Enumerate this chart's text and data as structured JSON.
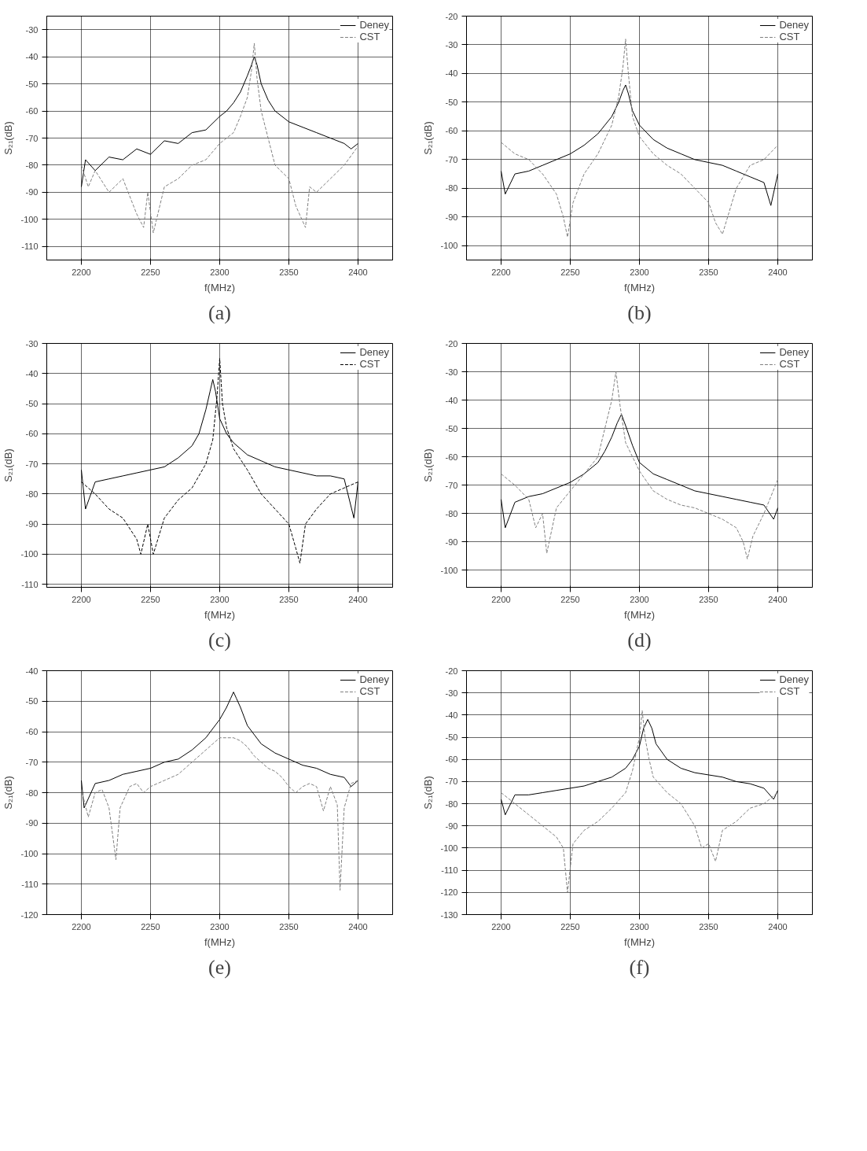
{
  "chart_data": [
    {
      "type": "line",
      "xlabel": "f(MHz)",
      "ylabel": "S₂₁(dB)",
      "annotations": [
        "(a)"
      ],
      "xlim": [
        2175,
        2425
      ],
      "ylim": [
        -115,
        -25
      ],
      "xticks": [
        2200,
        2250,
        2300,
        2350,
        2400
      ],
      "yticks": [
        -110,
        -100,
        -90,
        -80,
        -70,
        -60,
        -50,
        -40,
        -30
      ],
      "grid": true,
      "legend": "top right",
      "series": [
        {
          "name": "Deney",
          "color": "#000000",
          "line_style": "solid",
          "x": [
            2200,
            2203,
            2210,
            2220,
            2230,
            2240,
            2250,
            2260,
            2270,
            2280,
            2290,
            2300,
            2305,
            2310,
            2315,
            2320,
            2323,
            2325,
            2327,
            2330,
            2335,
            2340,
            2350,
            2360,
            2370,
            2380,
            2390,
            2395,
            2400
          ],
          "values": [
            -88,
            -78,
            -82,
            -77,
            -78,
            -74,
            -76,
            -71,
            -72,
            -68,
            -67,
            -62,
            -60,
            -57,
            -53,
            -47,
            -43,
            -40,
            -43,
            -50,
            -56,
            -60,
            -64,
            -66,
            -68,
            -70,
            -72,
            -74,
            -72
          ]
        },
        {
          "name": "CST",
          "color": "#808080",
          "line_style": "dashed",
          "x": [
            2200,
            2205,
            2210,
            2220,
            2230,
            2240,
            2245,
            2248,
            2252,
            2260,
            2270,
            2280,
            2290,
            2300,
            2310,
            2315,
            2320,
            2323,
            2325,
            2327,
            2330,
            2335,
            2340,
            2350,
            2355,
            2362,
            2365,
            2370,
            2380,
            2390,
            2400
          ],
          "values": [
            -80,
            -88,
            -82,
            -90,
            -85,
            -98,
            -103,
            -90,
            -105,
            -88,
            -85,
            -80,
            -78,
            -72,
            -68,
            -62,
            -55,
            -45,
            -35,
            -48,
            -60,
            -70,
            -80,
            -85,
            -95,
            -103,
            -88,
            -90,
            -85,
            -80,
            -73
          ]
        }
      ]
    },
    {
      "type": "line",
      "xlabel": "f(MHz)",
      "ylabel": "S₂₁(dB)",
      "annotations": [
        "(b)"
      ],
      "xlim": [
        2175,
        2425
      ],
      "ylim": [
        -105,
        -20
      ],
      "xticks": [
        2200,
        2250,
        2300,
        2350,
        2400
      ],
      "yticks": [
        -100,
        -90,
        -80,
        -70,
        -60,
        -50,
        -40,
        -30,
        -20
      ],
      "grid": true,
      "legend": "top right",
      "series": [
        {
          "name": "Deney",
          "color": "#000000",
          "line_style": "solid",
          "x": [
            2200,
            2203,
            2210,
            2220,
            2230,
            2240,
            2250,
            2260,
            2270,
            2275,
            2280,
            2285,
            2288,
            2290,
            2292,
            2295,
            2300,
            2310,
            2320,
            2330,
            2340,
            2350,
            2360,
            2370,
            2380,
            2390,
            2395,
            2400
          ],
          "values": [
            -74,
            -82,
            -75,
            -74,
            -72,
            -70,
            -68,
            -65,
            -61,
            -58,
            -55,
            -50,
            -46,
            -44,
            -47,
            -53,
            -58,
            -63,
            -66,
            -68,
            -70,
            -71,
            -72,
            -74,
            -76,
            -78,
            -86,
            -75
          ]
        },
        {
          "name": "CST",
          "color": "#808080",
          "line_style": "dashed",
          "x": [
            2200,
            2210,
            2220,
            2230,
            2240,
            2245,
            2248,
            2252,
            2260,
            2270,
            2280,
            2285,
            2288,
            2290,
            2292,
            2295,
            2300,
            2310,
            2320,
            2330,
            2340,
            2350,
            2355,
            2360,
            2365,
            2370,
            2380,
            2390,
            2400
          ],
          "values": [
            -64,
            -68,
            -70,
            -75,
            -82,
            -90,
            -97,
            -85,
            -75,
            -68,
            -58,
            -48,
            -38,
            -28,
            -40,
            -55,
            -62,
            -68,
            -72,
            -75,
            -80,
            -85,
            -92,
            -96,
            -88,
            -80,
            -72,
            -70,
            -65
          ]
        }
      ]
    },
    {
      "type": "line",
      "xlabel": "f(MHz)",
      "ylabel": "S₂₁(dB)",
      "annotations": [
        "(c)"
      ],
      "xlim": [
        2175,
        2425
      ],
      "ylim": [
        -111,
        -30
      ],
      "xticks": [
        2200,
        2250,
        2300,
        2350,
        2400
      ],
      "yticks": [
        -110,
        -100,
        -90,
        -80,
        -70,
        -60,
        -50,
        -40,
        -30
      ],
      "grid": true,
      "legend": "top right",
      "series": [
        {
          "name": "Deney",
          "color": "#000000",
          "line_style": "solid",
          "x": [
            2200,
            2203,
            2210,
            2220,
            2230,
            2240,
            2250,
            2260,
            2270,
            2280,
            2285,
            2290,
            2293,
            2295,
            2297,
            2300,
            2305,
            2310,
            2320,
            2330,
            2340,
            2350,
            2360,
            2370,
            2380,
            2390,
            2397,
            2400
          ],
          "values": [
            -72,
            -85,
            -76,
            -75,
            -74,
            -73,
            -72,
            -71,
            -68,
            -64,
            -60,
            -52,
            -46,
            -42,
            -46,
            -55,
            -60,
            -63,
            -67,
            -69,
            -71,
            -72,
            -73,
            -74,
            -74,
            -75,
            -88,
            -76
          ]
        },
        {
          "name": "CST",
          "color": "#000000",
          "line_style": "dashed",
          "x": [
            2200,
            2210,
            2220,
            2230,
            2240,
            2243,
            2248,
            2252,
            2260,
            2270,
            2280,
            2290,
            2295,
            2298,
            2300,
            2302,
            2305,
            2310,
            2320,
            2330,
            2340,
            2350,
            2355,
            2358,
            2362,
            2370,
            2380,
            2390,
            2400
          ],
          "values": [
            -76,
            -80,
            -85,
            -88,
            -95,
            -100,
            -90,
            -100,
            -88,
            -82,
            -78,
            -70,
            -62,
            -48,
            -35,
            -50,
            -58,
            -65,
            -72,
            -80,
            -85,
            -90,
            -98,
            -103,
            -90,
            -85,
            -80,
            -78,
            -76
          ]
        }
      ]
    },
    {
      "type": "line",
      "xlabel": "f(MHz)",
      "ylabel": "S₂₁(dB)",
      "annotations": [
        "(d)"
      ],
      "xlim": [
        2175,
        2425
      ],
      "ylim": [
        -106,
        -20
      ],
      "xticks": [
        2200,
        2250,
        2300,
        2350,
        2400
      ],
      "yticks": [
        -100,
        -90,
        -80,
        -70,
        -60,
        -50,
        -40,
        -30,
        -20
      ],
      "grid": true,
      "legend": "top right",
      "series": [
        {
          "name": "Deney",
          "color": "#000000",
          "line_style": "solid",
          "x": [
            2200,
            2203,
            2210,
            2220,
            2230,
            2240,
            2250,
            2260,
            2270,
            2275,
            2280,
            2284,
            2287,
            2290,
            2295,
            2300,
            2310,
            2320,
            2330,
            2340,
            2350,
            2360,
            2370,
            2380,
            2390,
            2397,
            2400
          ],
          "values": [
            -75,
            -85,
            -76,
            -74,
            -73,
            -71,
            -69,
            -66,
            -62,
            -58,
            -53,
            -48,
            -45,
            -49,
            -56,
            -62,
            -66,
            -68,
            -70,
            -72,
            -73,
            -74,
            -75,
            -76,
            -77,
            -82,
            -78
          ]
        },
        {
          "name": "CST",
          "color": "#808080",
          "line_style": "dashed",
          "x": [
            2200,
            2210,
            2220,
            2225,
            2230,
            2233,
            2240,
            2250,
            2260,
            2270,
            2275,
            2280,
            2283,
            2286,
            2290,
            2300,
            2310,
            2320,
            2330,
            2340,
            2350,
            2360,
            2370,
            2375,
            2378,
            2382,
            2390,
            2400
          ],
          "values": [
            -66,
            -70,
            -75,
            -85,
            -80,
            -94,
            -78,
            -72,
            -66,
            -60,
            -50,
            -40,
            -30,
            -42,
            -55,
            -65,
            -72,
            -75,
            -77,
            -78,
            -80,
            -82,
            -85,
            -90,
            -96,
            -88,
            -80,
            -68
          ]
        }
      ]
    },
    {
      "type": "line",
      "xlabel": "f(MHz)",
      "ylabel": "S₂₁(dB)",
      "annotations": [
        "(e)"
      ],
      "xlim": [
        2175,
        2425
      ],
      "ylim": [
        -120,
        -40
      ],
      "xticks": [
        2200,
        2250,
        2300,
        2350,
        2400
      ],
      "yticks": [
        -120,
        -110,
        -100,
        -90,
        -80,
        -70,
        -60,
        -50,
        -40
      ],
      "grid": true,
      "legend": "top right",
      "series": [
        {
          "name": "Deney",
          "color": "#000000",
          "line_style": "solid",
          "x": [
            2200,
            2202,
            2210,
            2220,
            2230,
            2240,
            2250,
            2260,
            2270,
            2280,
            2290,
            2300,
            2305,
            2308,
            2310,
            2312,
            2315,
            2320,
            2330,
            2340,
            2350,
            2360,
            2370,
            2380,
            2390,
            2395,
            2400
          ],
          "values": [
            -76,
            -85,
            -77,
            -76,
            -74,
            -73,
            -72,
            -70,
            -69,
            -66,
            -62,
            -56,
            -52,
            -49,
            -47,
            -49,
            -52,
            -58,
            -64,
            -67,
            -69,
            -71,
            -72,
            -74,
            -75,
            -78,
            -76
          ]
        },
        {
          "name": "CST",
          "color": "#808080",
          "line_style": "dashed",
          "x": [
            2200,
            2205,
            2210,
            2215,
            2220,
            2225,
            2228,
            2235,
            2240,
            2245,
            2250,
            2255,
            2260,
            2265,
            2270,
            2275,
            2280,
            2285,
            2290,
            2295,
            2300,
            2305,
            2310,
            2315,
            2320,
            2325,
            2330,
            2335,
            2340,
            2345,
            2350,
            2355,
            2360,
            2365,
            2370,
            2375,
            2380,
            2385,
            2387,
            2390,
            2395,
            2400
          ],
          "values": [
            -79,
            -88,
            -80,
            -79,
            -85,
            -102,
            -85,
            -78,
            -77,
            -80,
            -78,
            -77,
            -76,
            -75,
            -74,
            -72,
            -70,
            -68,
            -66,
            -64,
            -62,
            -62,
            -62,
            -63,
            -65,
            -68,
            -70,
            -72,
            -73,
            -75,
            -78,
            -80,
            -78,
            -77,
            -78,
            -86,
            -78,
            -84,
            -112,
            -85,
            -77,
            -76
          ]
        }
      ]
    },
    {
      "type": "line",
      "xlabel": "f(MHz)",
      "ylabel": "S₂₁(dB)",
      "annotations": [
        "(f)"
      ],
      "xlim": [
        2175,
        2425
      ],
      "ylim": [
        -130,
        -20
      ],
      "xticks": [
        2200,
        2250,
        2300,
        2350,
        2400
      ],
      "yticks": [
        -130,
        -120,
        -110,
        -100,
        -90,
        -80,
        -70,
        -60,
        -50,
        -40,
        -30,
        -20
      ],
      "grid": true,
      "legend": "top right",
      "series": [
        {
          "name": "Deney",
          "color": "#000000",
          "line_style": "solid",
          "x": [
            2200,
            2203,
            2210,
            2220,
            2230,
            2240,
            2250,
            2260,
            2270,
            2280,
            2290,
            2295,
            2300,
            2303,
            2306,
            2309,
            2312,
            2320,
            2330,
            2340,
            2350,
            2360,
            2370,
            2380,
            2390,
            2397,
            2400
          ],
          "values": [
            -78,
            -85,
            -76,
            -76,
            -75,
            -74,
            -73,
            -72,
            -70,
            -68,
            -64,
            -60,
            -54,
            -46,
            -42,
            -46,
            -53,
            -60,
            -64,
            -66,
            -67,
            -68,
            -70,
            -71,
            -73,
            -78,
            -74
          ]
        },
        {
          "name": "CST",
          "color": "#808080",
          "line_style": "dashed",
          "x": [
            2200,
            2210,
            2220,
            2230,
            2240,
            2245,
            2248,
            2252,
            2260,
            2270,
            2280,
            2290,
            2295,
            2300,
            2302,
            2304,
            2307,
            2310,
            2320,
            2330,
            2340,
            2345,
            2350,
            2355,
            2360,
            2370,
            2380,
            2390,
            2400
          ],
          "values": [
            -75,
            -80,
            -85,
            -90,
            -95,
            -100,
            -120,
            -98,
            -92,
            -88,
            -82,
            -75,
            -65,
            -50,
            -38,
            -50,
            -60,
            -68,
            -75,
            -80,
            -90,
            -100,
            -98,
            -106,
            -92,
            -88,
            -82,
            -80,
            -75
          ]
        }
      ]
    }
  ]
}
